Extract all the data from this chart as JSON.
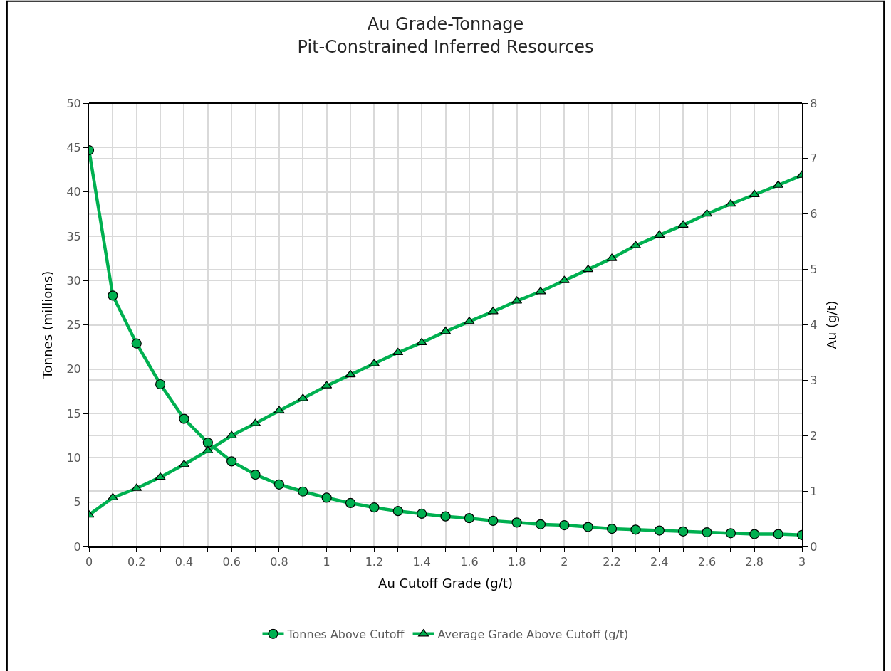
{
  "chart_data": {
    "type": "line",
    "title": "Au Grade-Tonnage\nPit-Constrained Inferred Resources",
    "xlabel": "Au Cutoff Grade (g/t)",
    "ylabel": "Tonnes (millions)",
    "y2label": "Au (g/t)",
    "x": [
      0,
      0.1,
      0.2,
      0.3,
      0.4,
      0.5,
      0.6,
      0.7,
      0.8,
      0.9,
      1,
      1.1,
      1.2,
      1.3,
      1.4,
      1.5,
      1.6,
      1.7,
      1.8,
      1.9,
      2,
      2.1,
      2.2,
      2.3,
      2.4,
      2.5,
      2.6,
      2.7,
      2.8,
      2.9,
      3
    ],
    "series": [
      {
        "name": "Tonnes Above Cutoff",
        "color": "#00b050",
        "marker": "circle",
        "values": [
          44.7,
          28.3,
          22.9,
          18.3,
          14.4,
          11.7,
          9.6,
          8.1,
          7.0,
          6.2,
          5.5,
          4.9,
          4.4,
          4.0,
          3.7,
          3.4,
          3.2,
          2.9,
          2.7,
          2.5,
          2.4,
          2.2,
          2.0,
          1.9,
          1.8,
          1.7,
          1.6,
          1.5,
          1.4,
          1.4,
          1.3
        ]
      },
      {
        "name": "Average Grade Above Cutoff (g/t)",
        "color": "#00b050",
        "marker": "triangle",
        "axis": "y2",
        "values": [
          0.57,
          0.88,
          1.05,
          1.25,
          1.48,
          1.73,
          2.0,
          2.22,
          2.45,
          2.67,
          2.9,
          3.1,
          3.3,
          3.5,
          3.68,
          3.88,
          4.06,
          4.24,
          4.43,
          4.6,
          4.8,
          5.0,
          5.2,
          5.43,
          5.62,
          5.8,
          6.0,
          6.18,
          6.35,
          6.52,
          6.7
        ]
      }
    ],
    "xlim": [
      0,
      3
    ],
    "xticks": [
      0,
      {
        "value": 0.1,
        "label": null
      },
      0.2,
      {
        "value": 0.3,
        "label": null
      },
      0.4,
      {
        "value": 0.5,
        "label": null
      },
      0.6,
      {
        "value": 0.7,
        "label": null
      },
      0.8,
      {
        "value": 0.9,
        "label": null
      },
      1,
      {
        "value": 1.1,
        "label": null
      },
      1.2,
      {
        "value": 1.3,
        "label": null
      },
      1.4,
      {
        "value": 1.5,
        "label": null
      },
      1.6,
      {
        "value": 1.7,
        "label": null
      },
      1.8,
      {
        "value": 1.9,
        "label": null
      },
      2,
      {
        "value": 2.1,
        "label": null
      },
      2.2,
      {
        "value": 2.3,
        "label": null
      },
      2.4,
      {
        "value": 2.5,
        "label": null
      },
      2.6,
      {
        "value": 2.7,
        "label": null
      },
      2.8,
      {
        "value": 2.9,
        "label": null
      },
      3
    ],
    "ylim": [
      0,
      50
    ],
    "yticks": [
      0,
      5,
      10,
      15,
      20,
      25,
      30,
      35,
      40,
      45,
      50
    ],
    "y2lim": [
      0,
      8
    ],
    "y2ticks": [
      0,
      1,
      2,
      3,
      4,
      5,
      6,
      7,
      8
    ],
    "grid": true,
    "legend": "bottom",
    "line_style": "solid"
  }
}
